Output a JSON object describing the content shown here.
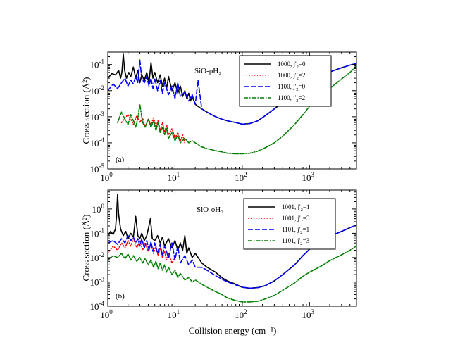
{
  "figure": {
    "xlabel": "Collision energy (cm⁻¹)"
  },
  "chart_data": [
    {
      "type": "line",
      "panel_label": "(a)",
      "annotation": "SiO-pH₂",
      "ylabel": "Cross section (Å²)",
      "xscale": "log",
      "yscale": "log",
      "xlim": [
        1,
        5000
      ],
      "ylim": [
        1e-05,
        0.3
      ],
      "x_ticks": [
        1,
        10,
        100,
        1000
      ],
      "x_tick_labels": [
        [
          "10",
          "0"
        ],
        [
          "10",
          "1"
        ],
        [
          "10",
          "2"
        ],
        [
          "10",
          "3"
        ]
      ],
      "y_ticks": [
        1e-05,
        0.0001,
        0.001,
        0.01,
        0.1
      ],
      "y_tick_labels": [
        [
          "10",
          "-5"
        ],
        [
          "10",
          "-4"
        ],
        [
          "10",
          "-3"
        ],
        [
          "10",
          "-2"
        ],
        [
          "10",
          "-1"
        ]
      ],
      "legend_position": "top-right",
      "series": [
        {
          "name": "1000, j'₂=0",
          "legend_main": "1000, j'",
          "legend_sub": "2",
          "legend_tail": "=0",
          "color": "#000000",
          "dash": "solid",
          "x": [
            1,
            1.15,
            1.3,
            1.45,
            1.55,
            1.62,
            1.7,
            1.78,
            1.9,
            2.05,
            2.2,
            2.4,
            2.6,
            2.8,
            3,
            3.2,
            3.5,
            3.8,
            4.1,
            4.4,
            4.7,
            5,
            5.5,
            6,
            6.5,
            7,
            7.5,
            8,
            9,
            10,
            11,
            12,
            13,
            14,
            15,
            16,
            17,
            18,
            20,
            22,
            25,
            30,
            35,
            40,
            50,
            60,
            80,
            100,
            130,
            170,
            220,
            300,
            400,
            600,
            800,
            1000,
            1500,
            2000,
            3000,
            4000,
            5000
          ],
          "y": [
            0.03,
            0.045,
            0.04,
            0.06,
            0.03,
            0.05,
            0.25,
            0.06,
            0.03,
            0.05,
            0.035,
            0.08,
            0.03,
            0.06,
            0.02,
            0.04,
            0.025,
            0.05,
            0.02,
            0.12,
            0.03,
            0.05,
            0.02,
            0.04,
            0.015,
            0.03,
            0.012,
            0.035,
            0.01,
            0.02,
            0.008,
            0.015,
            0.006,
            0.01,
            0.005,
            0.008,
            0.004,
            0.006,
            0.003,
            0.0025,
            0.002,
            0.0015,
            0.0012,
            0.001,
            0.0008,
            0.0007,
            0.0006,
            0.00052,
            0.00055,
            0.0007,
            0.0011,
            0.002,
            0.0035,
            0.008,
            0.014,
            0.02,
            0.035,
            0.052,
            0.075,
            0.095,
            0.11
          ]
        },
        {
          "name": "1000, j'₂=2",
          "legend_main": "1000, j'",
          "legend_sub": "2",
          "legend_tail": "=2",
          "color": "#ff0000",
          "dash": "1.2 2.6",
          "x": [
            1.6,
            1.8,
            2,
            2.2,
            2.4,
            2.7,
            3,
            3.3,
            3.6,
            4,
            4.4,
            4.8,
            5.2,
            5.6,
            6,
            6.5,
            7,
            7.5,
            8,
            9,
            10,
            11,
            12,
            13,
            14
          ],
          "y": [
            0.0006,
            0.0009,
            0.0012,
            0.0008,
            0.0005,
            0.0011,
            0.0006,
            0.0009,
            0.0004,
            0.0008,
            0.0005,
            0.0009,
            0.0004,
            0.0007,
            0.0003,
            0.0006,
            0.00025,
            0.0005,
            0.0002,
            0.00035,
            0.00015,
            0.00025,
            0.00012,
            0.0002,
            0.0001
          ]
        },
        {
          "name": "1100, j'₂=0",
          "legend_main": "1100, j'",
          "legend_sub": "2",
          "legend_tail": "=0",
          "color": "#0000ff",
          "dash": "7 3",
          "x": [
            1,
            1.2,
            1.4,
            1.6,
            1.8,
            2,
            2.2,
            2.4,
            2.6,
            2.8,
            3,
            3.2,
            3.5,
            3.8,
            4.1,
            4.4,
            4.7,
            5,
            5.5,
            6,
            6.5,
            7,
            8,
            9,
            10,
            11,
            12,
            14,
            16,
            18,
            20,
            22,
            25,
            30,
            35,
            40,
            50,
            60,
            80,
            100,
            130,
            170,
            220,
            300,
            400,
            600,
            800,
            1000,
            1500,
            2000,
            3000,
            4000,
            5000
          ],
          "y": [
            0.01,
            0.018,
            0.012,
            0.02,
            0.03,
            0.015,
            0.025,
            0.018,
            0.035,
            0.02,
            0.15,
            0.03,
            0.02,
            0.035,
            0.015,
            0.03,
            0.012,
            0.03,
            0.01,
            0.025,
            0.008,
            0.02,
            0.007,
            0.015,
            0.005,
            0.02,
            0.006,
            0.009,
            0.004,
            0.007,
            0.003,
            0.025,
            0.002,
            0.0015,
            0.0012,
            0.001,
            0.0008,
            0.0007,
            0.0006,
            0.00052,
            0.00055,
            0.0007,
            0.0011,
            0.002,
            0.0035,
            0.008,
            0.014,
            0.02,
            0.035,
            0.052,
            0.075,
            0.095,
            0.11
          ]
        },
        {
          "name": "1100, j'₂=2",
          "legend_main": "1100, j'",
          "legend_sub": "2",
          "legend_tail": "=2",
          "color": "#008000",
          "dash": "6 2 1.5 2",
          "x": [
            1.4,
            1.6,
            1.8,
            2,
            2.2,
            2.4,
            2.6,
            2.8,
            3,
            3.3,
            3.6,
            4,
            4.4,
            4.8,
            5.2,
            5.6,
            6,
            6.5,
            7,
            7.5,
            8,
            9,
            10,
            11,
            12,
            14,
            16,
            18,
            20,
            25,
            30,
            40,
            50,
            60,
            80,
            100,
            130,
            170,
            220,
            300,
            400,
            600,
            800,
            1000,
            1500,
            2000,
            3000,
            4000,
            5000
          ],
          "y": [
            0.0006,
            0.0015,
            0.0008,
            0.0005,
            0.0012,
            0.0007,
            0.0004,
            0.0009,
            0.003,
            0.0006,
            0.0004,
            0.0008,
            0.0004,
            0.0007,
            0.0003,
            0.0006,
            0.00025,
            0.0004,
            0.0002,
            0.00035,
            0.00015,
            0.00025,
            0.00012,
            0.0002,
            0.0001,
            0.00015,
            0.0001,
            0.00012,
            0.0001,
            7e-05,
            6e-05,
            5e-05,
            4.5e-05,
            4e-05,
            3.8e-05,
            3.8e-05,
            4e-05,
            4.8e-05,
            6.5e-05,
            0.0001,
            0.00018,
            0.0005,
            0.0012,
            0.0025,
            0.006,
            0.012,
            0.028,
            0.05,
            0.09
          ]
        }
      ]
    },
    {
      "type": "line",
      "panel_label": "(b)",
      "annotation": "SiO-oH₂",
      "ylabel": "Cross section (Å²)",
      "xscale": "log",
      "yscale": "log",
      "xlim": [
        1,
        5000
      ],
      "ylim": [
        0.0001,
        6
      ],
      "x_ticks": [
        1,
        10,
        100,
        1000
      ],
      "x_tick_labels": [
        [
          "10",
          "0"
        ],
        [
          "10",
          "1"
        ],
        [
          "10",
          "2"
        ],
        [
          "10",
          "3"
        ]
      ],
      "y_ticks": [
        0.0001,
        0.001,
        0.01,
        0.1,
        1
      ],
      "y_tick_labels": [
        [
          "10",
          "-4"
        ],
        [
          "10",
          "-3"
        ],
        [
          "10",
          "-2"
        ],
        [
          "10",
          "-1"
        ],
        [
          "10",
          "0"
        ]
      ],
      "legend_position": "top-right",
      "series": [
        {
          "name": "1001, j'₂=1",
          "legend_main": "1001, j'",
          "legend_sub": "2",
          "legend_tail": "=1",
          "color": "#000000",
          "dash": "solid",
          "x": [
            1,
            1.1,
            1.2,
            1.3,
            1.35,
            1.4,
            1.45,
            1.55,
            1.7,
            1.85,
            2,
            2.2,
            2.4,
            2.6,
            2.8,
            3,
            3.2,
            3.5,
            3.8,
            4,
            4.3,
            4.6,
            5,
            5.5,
            6,
            6.5,
            7,
            8,
            9,
            10,
            11,
            12,
            13,
            14,
            15,
            16,
            18,
            20,
            25,
            30,
            40,
            50,
            60,
            80,
            100,
            130,
            170,
            220,
            300,
            400,
            600,
            800,
            1000,
            1500,
            2000,
            3000,
            4000,
            5000
          ],
          "y": [
            0.08,
            0.12,
            0.09,
            0.15,
            0.5,
            4,
            0.6,
            0.15,
            0.08,
            0.12,
            0.06,
            0.1,
            0.07,
            0.5,
            0.08,
            0.06,
            0.1,
            0.05,
            0.08,
            0.15,
            0.4,
            0.06,
            0.05,
            0.08,
            0.04,
            0.07,
            0.03,
            0.06,
            0.025,
            0.05,
            0.02,
            0.04,
            0.02,
            0.08,
            0.015,
            0.025,
            0.01,
            0.015,
            0.006,
            0.004,
            0.0025,
            0.0015,
            0.0011,
            0.0008,
            0.0006,
            0.00055,
            0.00058,
            0.0007,
            0.0011,
            0.002,
            0.005,
            0.012,
            0.022,
            0.045,
            0.075,
            0.12,
            0.17,
            0.22
          ]
        },
        {
          "name": "1001, j'₂=3",
          "legend_main": "1001, j'",
          "legend_sub": "2",
          "legend_tail": "=3",
          "color": "#ff0000",
          "dash": "1.2 2.6",
          "x": [
            1,
            1.2,
            1.4,
            1.6,
            1.8,
            2,
            2.2,
            2.4,
            2.7,
            3,
            3.3,
            3.6,
            4,
            4.4,
            4.8,
            5.2,
            5.6,
            6,
            6.5,
            7,
            7.5,
            8,
            9,
            10
          ],
          "y": [
            0.015,
            0.03,
            0.02,
            0.04,
            0.025,
            0.05,
            0.03,
            0.06,
            0.025,
            0.05,
            0.02,
            0.04,
            0.018,
            0.035,
            0.015,
            0.03,
            0.012,
            0.025,
            0.01,
            0.018,
            0.008,
            0.015,
            0.006,
            0.01
          ]
        },
        {
          "name": "1101, j'₂=1",
          "legend_main": "1101, j'",
          "legend_sub": "2",
          "legend_tail": "=1",
          "color": "#0000ff",
          "dash": "7 3",
          "x": [
            1,
            1.2,
            1.4,
            1.6,
            1.8,
            2,
            2.2,
            2.4,
            2.6,
            2.8,
            3,
            3.2,
            3.5,
            3.8,
            4.1,
            4.4,
            4.7,
            5,
            5.5,
            6,
            6.5,
            7,
            8,
            9,
            10,
            11,
            12,
            14,
            16,
            18,
            20,
            25,
            30,
            40,
            50,
            60,
            80,
            100,
            130,
            170,
            220,
            300,
            400,
            600,
            800,
            1000,
            1500,
            2000,
            3000,
            4000,
            5000
          ],
          "y": [
            0.04,
            0.05,
            0.035,
            0.06,
            0.04,
            0.08,
            0.05,
            0.07,
            0.04,
            0.06,
            0.03,
            0.06,
            0.025,
            0.05,
            0.02,
            0.045,
            0.018,
            0.04,
            0.015,
            0.035,
            0.012,
            0.03,
            0.01,
            0.04,
            0.008,
            0.03,
            0.006,
            0.012,
            0.005,
            0.008,
            0.004,
            0.004,
            0.003,
            0.0018,
            0.0013,
            0.001,
            0.00075,
            0.0006,
            0.00055,
            0.00058,
            0.0007,
            0.0011,
            0.002,
            0.005,
            0.012,
            0.022,
            0.045,
            0.075,
            0.12,
            0.17,
            0.22
          ]
        },
        {
          "name": "1101, j'₂=3",
          "legend_main": "1101, j'",
          "legend_sub": "2",
          "legend_tail": "=3",
          "color": "#008000",
          "dash": "6 2 1.5 2",
          "x": [
            1,
            1.2,
            1.4,
            1.6,
            1.8,
            2,
            2.2,
            2.4,
            2.7,
            3,
            3.3,
            3.6,
            4,
            4.4,
            4.8,
            5.2,
            5.6,
            6,
            6.5,
            7,
            7.5,
            8,
            9,
            10,
            11,
            12,
            14,
            16,
            18,
            20,
            25,
            30,
            40,
            50,
            60,
            80,
            100,
            130,
            170,
            220,
            300,
            400,
            600,
            800,
            1000,
            1500,
            2000,
            3000,
            4000,
            5000
          ],
          "y": [
            0.008,
            0.012,
            0.01,
            0.015,
            0.009,
            0.014,
            0.008,
            0.012,
            0.007,
            0.01,
            0.006,
            0.009,
            0.005,
            0.008,
            0.004,
            0.007,
            0.0035,
            0.006,
            0.003,
            0.005,
            0.0025,
            0.004,
            0.002,
            0.003,
            0.0015,
            0.0022,
            0.0012,
            0.0015,
            0.001,
            0.0012,
            0.0008,
            0.0006,
            0.0004,
            0.0003,
            0.00022,
            0.00017,
            0.00015,
            0.00015,
            0.00016,
            0.0002,
            0.00028,
            0.00045,
            0.0009,
            0.0017,
            0.0025,
            0.0045,
            0.0075,
            0.013,
            0.02,
            0.03
          ]
        }
      ]
    }
  ]
}
